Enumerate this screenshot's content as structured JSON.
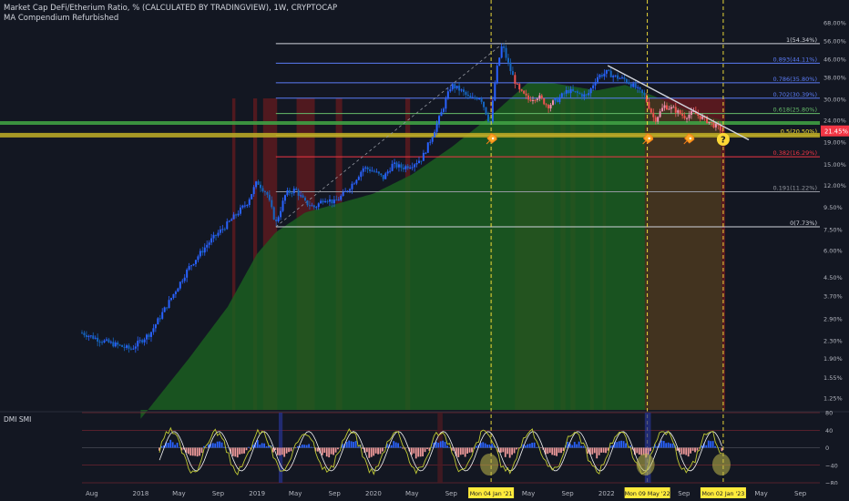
{
  "header": {
    "title": "Market Cap DeFi/Etherium Ratio, % (CALCULATED BY TRADINGVIEW), 1W, CRYPTOCAP",
    "indicator": "MA Compendium Refurbished"
  },
  "subpanel": {
    "label": "DMI SMI",
    "y_ticks": [
      "80",
      "40",
      "0",
      "−40",
      "−80"
    ]
  },
  "colors": {
    "background": "#131722",
    "price_up": "#2962ff",
    "price_up_dark": "#1e3a8a",
    "price_down": "#ef5350",
    "ma_fill_bull": "#1b5e20",
    "ma_fill_bear": "#5c1a1f",
    "axis_text": "#b2b5be",
    "date_highlight": "#ffeb3b",
    "trendline": "#d1d4dc",
    "support_zone": "#b8a626",
    "current_price": "#f23645"
  },
  "icons": [
    "rocket-icon",
    "rocket-icon",
    "rocket-icon",
    "question-icon"
  ],
  "chart_data": {
    "type": "candlestick",
    "title": "Market Cap DeFi/Etherium Ratio, %",
    "ylabel": "",
    "y_scale": "log",
    "y_ticks": [
      "68.00%",
      "56.00%",
      "46.00%",
      "38.00%",
      "30.00%",
      "24.00%",
      "19.00%",
      "15.00%",
      "12.00%",
      "9.50%",
      "7.50%",
      "6.00%",
      "4.50%",
      "3.70%",
      "2.90%",
      "2.30%",
      "1.90%",
      "1.55%",
      "1.25%"
    ],
    "y_tick_values": [
      68,
      56,
      46,
      38,
      30,
      24,
      19,
      15,
      12,
      9.5,
      7.5,
      6,
      4.5,
      3.7,
      2.9,
      2.3,
      1.9,
      1.55,
      1.25
    ],
    "x_ticks": [
      "Aug",
      "2018",
      "May",
      "Sep",
      "2019",
      "May",
      "Sep",
      "2020",
      "May",
      "Sep",
      "May",
      "Sep",
      "2022",
      "Sep",
      "May",
      "Sep"
    ],
    "x_tick_dates": [
      "2017-08-01",
      "2018-01-01",
      "2018-05-01",
      "2018-09-01",
      "2019-01-01",
      "2019-05-01",
      "2019-09-01",
      "2020-01-01",
      "2020-05-01",
      "2020-09-01",
      "2021-05-01",
      "2021-09-01",
      "2022-01-01",
      "2022-09-01",
      "2023-05-01",
      "2023-09-01"
    ],
    "highlighted_dates": [
      "Mon 04 Jan '21",
      "Mon 09 May '22",
      "Mon 02 Jan '23"
    ],
    "highlighted_date_values": [
      "2021-01-04",
      "2022-05-09",
      "2023-01-02"
    ],
    "current_price": "21.45%",
    "current_price_value": 21.45,
    "fib_levels": [
      {
        "ratio": "1",
        "label": "1(54.34%)",
        "value": 54.34,
        "color": "#d1d4dc"
      },
      {
        "ratio": "0.893",
        "label": "0.893(44.11%)",
        "value": 44.11,
        "color": "#5b7cf6"
      },
      {
        "ratio": "0.786",
        "label": "0.786(35.80%)",
        "value": 35.8,
        "color": "#5b7cf6"
      },
      {
        "ratio": "0.702",
        "label": "0.702(30.39%)",
        "value": 30.39,
        "color": "#5b7cf6"
      },
      {
        "ratio": "0.618",
        "label": "0.618(25.80%)",
        "value": 25.8,
        "color": "#66bb6a"
      },
      {
        "ratio": "0.5",
        "label": "0.5(20.50%)",
        "value": 20.5,
        "color": "#ffeb3b"
      },
      {
        "ratio": "0.382",
        "label": "0.382(16.29%)",
        "value": 16.29,
        "color": "#f23645"
      },
      {
        "ratio": "0.191",
        "label": "0.191(11.22%)",
        "value": 11.22,
        "color": "#9598a1"
      },
      {
        "ratio": "0",
        "label": "0(7.73%)",
        "value": 7.73,
        "color": "#d1d4dc"
      }
    ],
    "fib_start_date": "2019-03-01",
    "series": [
      {
        "name": "price (approx weekly close)",
        "points": [
          [
            "2017-07-01",
            2.5
          ],
          [
            "2017-09-01",
            2.3
          ],
          [
            "2017-12-01",
            2.1
          ],
          [
            "2018-02-01",
            2.5
          ],
          [
            "2018-04-01",
            3.5
          ],
          [
            "2018-06-01",
            5.0
          ],
          [
            "2018-08-01",
            6.5
          ],
          [
            "2018-10-01",
            8.0
          ],
          [
            "2018-12-01",
            10.0
          ],
          [
            "2019-01-01",
            12.5
          ],
          [
            "2019-02-01",
            11.0
          ],
          [
            "2019-03-01",
            8.0
          ],
          [
            "2019-04-01",
            11.0
          ],
          [
            "2019-05-01",
            11.5
          ],
          [
            "2019-06-01",
            10.0
          ],
          [
            "2019-07-01",
            9.5
          ],
          [
            "2019-08-01",
            10.5
          ],
          [
            "2019-09-01",
            10.0
          ],
          [
            "2019-10-01",
            11.0
          ],
          [
            "2019-11-01",
            12.5
          ],
          [
            "2019-12-01",
            14.5
          ],
          [
            "2020-01-01",
            14.0
          ],
          [
            "2020-02-01",
            13.0
          ],
          [
            "2020-03-01",
            15.0
          ],
          [
            "2020-04-01",
            14.5
          ],
          [
            "2020-05-01",
            15.0
          ],
          [
            "2020-06-01",
            16.0
          ],
          [
            "2020-07-01",
            20.0
          ],
          [
            "2020-08-01",
            26.0
          ],
          [
            "2020-09-01",
            35.0
          ],
          [
            "2020-10-01",
            33.0
          ],
          [
            "2020-11-01",
            30.0
          ],
          [
            "2020-12-01",
            31.0
          ],
          [
            "2021-01-01",
            23.0
          ],
          [
            "2021-01-20",
            40.0
          ],
          [
            "2021-02-08",
            54.0
          ],
          [
            "2021-02-22",
            46.0
          ],
          [
            "2021-03-08",
            40.0
          ],
          [
            "2021-04-01",
            33.0
          ],
          [
            "2021-05-01",
            30.0
          ],
          [
            "2021-06-01",
            31.0
          ],
          [
            "2021-07-01",
            28.0
          ],
          [
            "2021-08-01",
            30.0
          ],
          [
            "2021-09-01",
            33.0
          ],
          [
            "2021-10-01",
            32.0
          ],
          [
            "2021-11-01",
            31.0
          ],
          [
            "2021-12-01",
            38.0
          ],
          [
            "2022-01-01",
            40.0
          ],
          [
            "2022-02-01",
            38.0
          ],
          [
            "2022-03-01",
            37.0
          ],
          [
            "2022-04-01",
            34.0
          ],
          [
            "2022-05-01",
            31.0
          ],
          [
            "2022-06-01",
            24.0
          ],
          [
            "2022-07-01",
            28.0
          ],
          [
            "2022-08-01",
            27.0
          ],
          [
            "2022-09-01",
            25.0
          ],
          [
            "2022-10-01",
            26.0
          ],
          [
            "2022-11-01",
            24.5
          ],
          [
            "2022-12-01",
            23.0
          ],
          [
            "2023-01-01",
            21.45
          ]
        ]
      },
      {
        "name": "moving average (approx)",
        "points": [
          [
            "2018-01-01",
            1.0
          ],
          [
            "2018-06-01",
            1.9
          ],
          [
            "2018-10-01",
            3.3
          ],
          [
            "2019-01-01",
            5.8
          ],
          [
            "2019-03-01",
            7.3
          ],
          [
            "2019-06-01",
            9.0
          ],
          [
            "2019-09-01",
            9.8
          ],
          [
            "2020-01-01",
            11.0
          ],
          [
            "2020-05-01",
            13.5
          ],
          [
            "2020-09-01",
            18.0
          ],
          [
            "2021-01-01",
            25.0
          ],
          [
            "2021-05-01",
            36.0
          ],
          [
            "2021-07-01",
            36.0
          ],
          [
            "2021-12-01",
            33.0
          ],
          [
            "2022-03-01",
            35.0
          ],
          [
            "2022-06-01",
            31.0
          ],
          [
            "2022-09-01",
            27.0
          ],
          [
            "2023-01-01",
            24.0
          ]
        ]
      }
    ]
  }
}
